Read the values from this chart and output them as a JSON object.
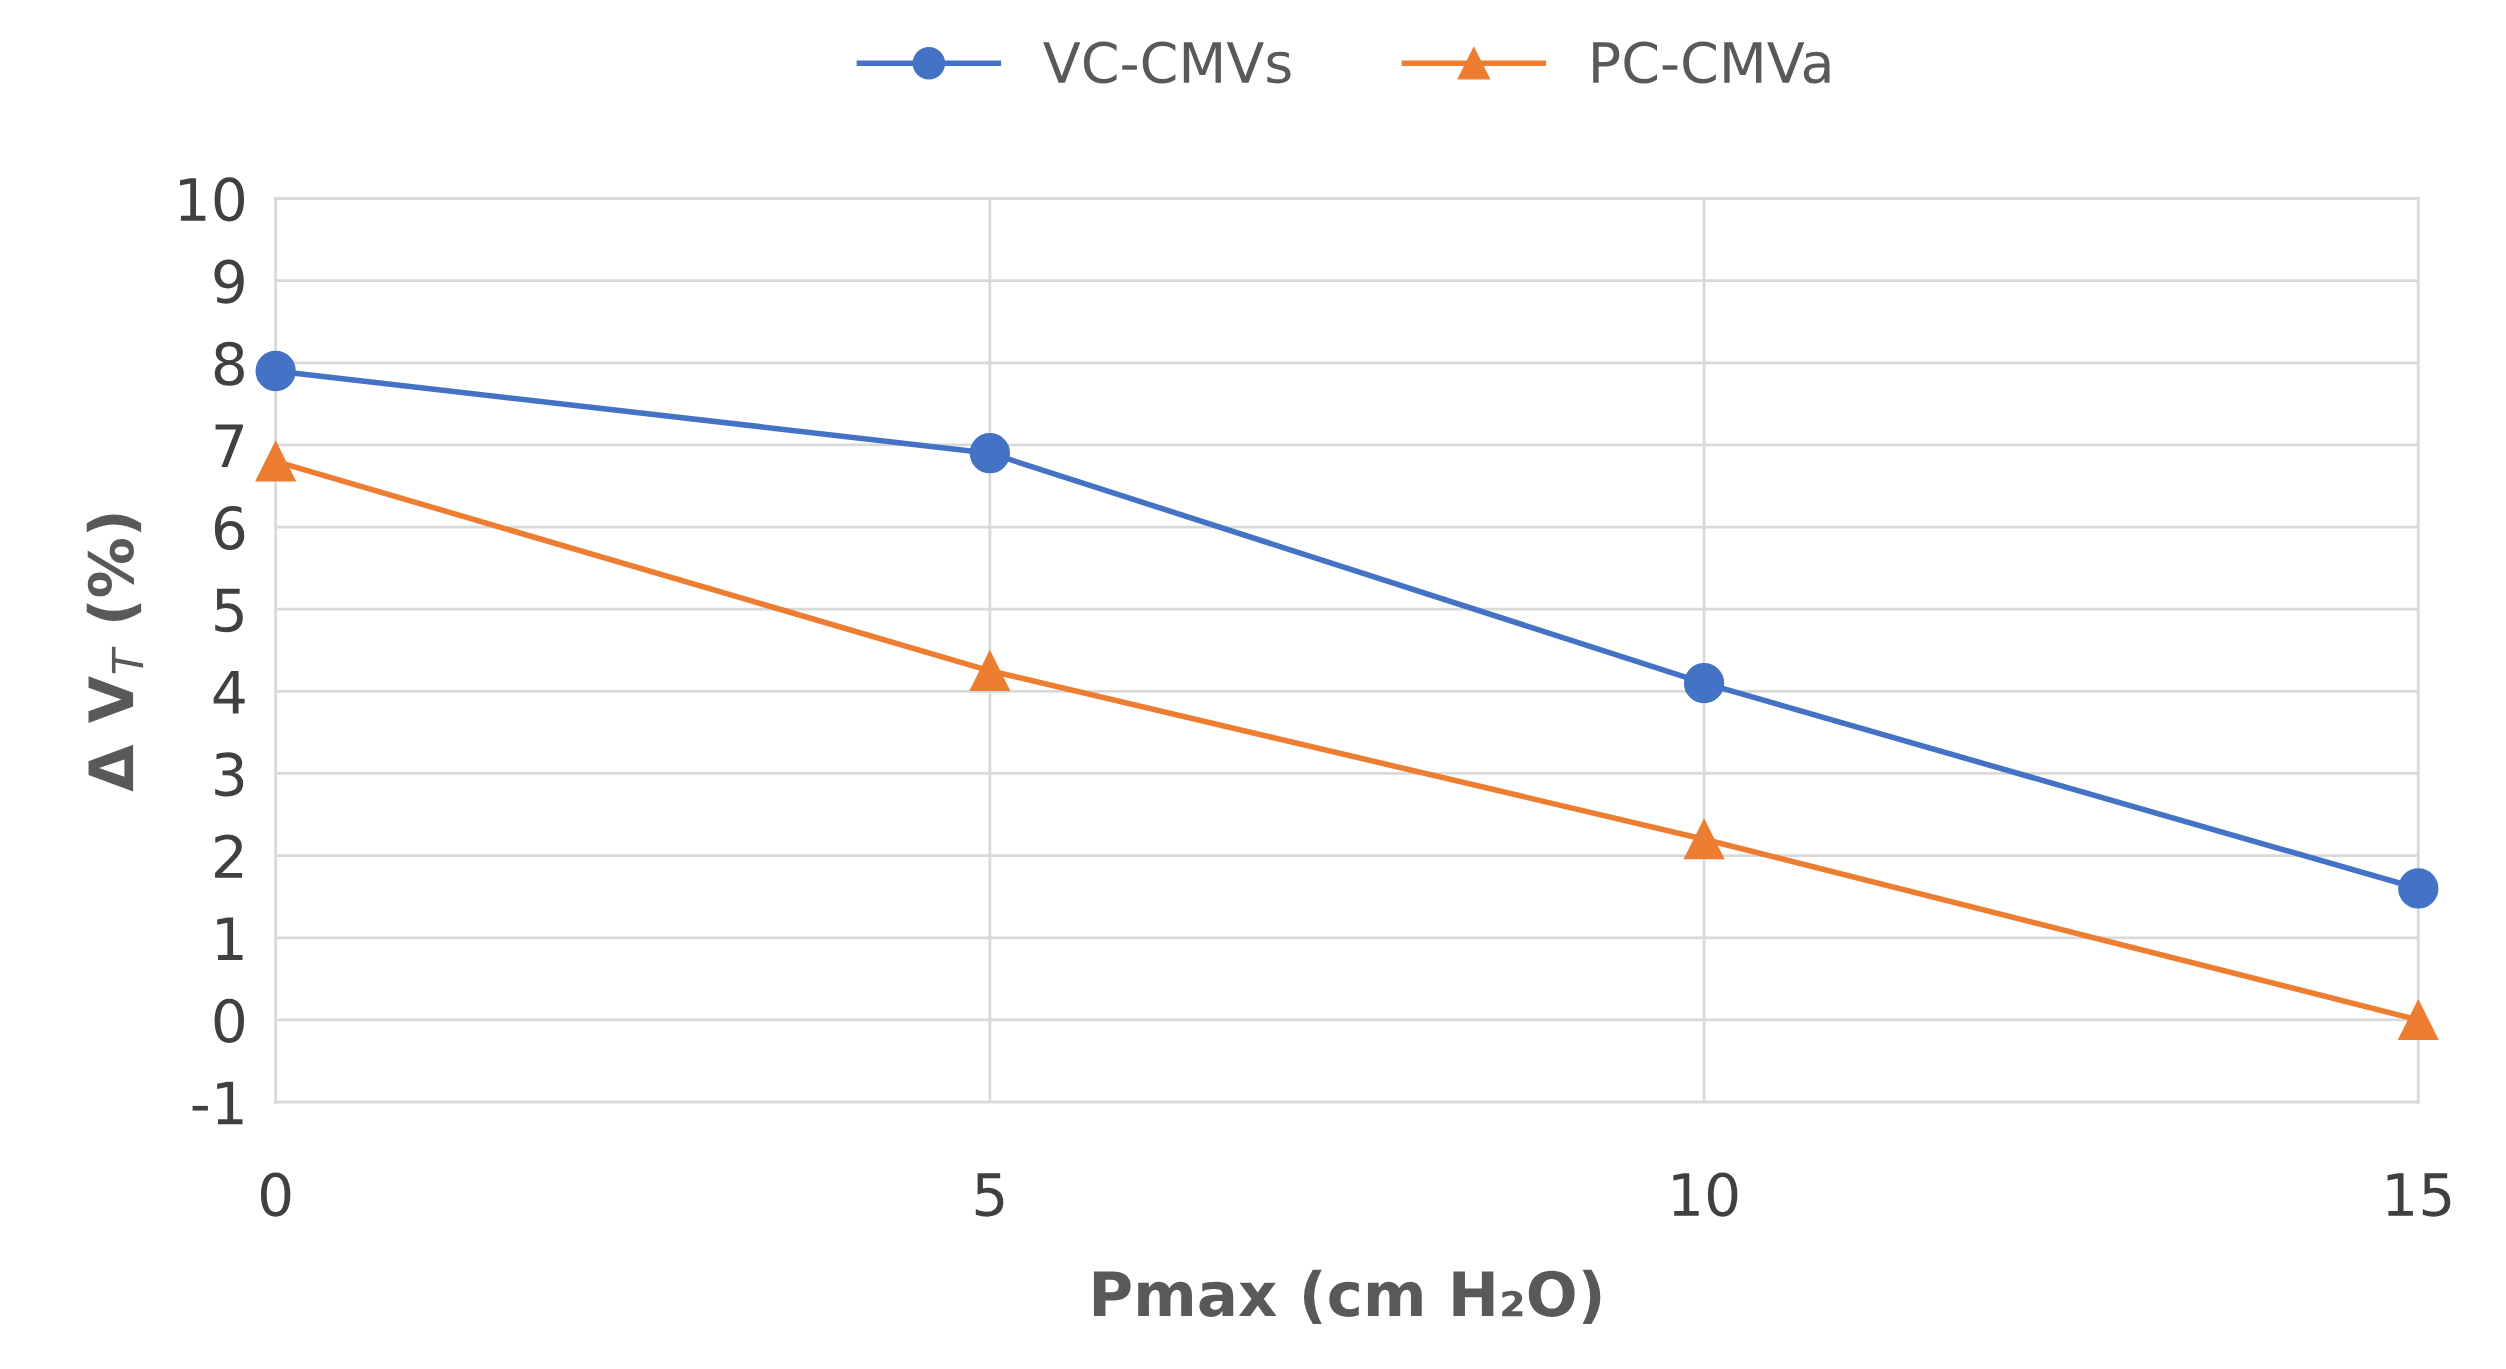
{
  "chart_data": {
    "type": "line",
    "xlabel": "Pmax (cm H₂O)",
    "ylabel": "Δ V$_{T}$ (%)",
    "x": [
      0,
      5,
      10,
      15
    ],
    "series": [
      {
        "name": "VC-CMVs",
        "color": "#4472c4",
        "values": [
          7.9,
          6.9,
          4.1,
          1.6
        ],
        "marker": "circle"
      },
      {
        "name": "PC-CMVa",
        "color": "#ed7d31",
        "values": [
          6.8,
          4.25,
          2.2,
          0.0
        ],
        "marker": "triangle"
      }
    ],
    "xlim": [
      0,
      15
    ],
    "xticks": [
      0,
      5,
      10,
      15
    ],
    "ylim": [
      -1,
      10
    ],
    "yticks": [
      -1,
      0,
      1,
      2,
      3,
      4,
      5,
      6,
      7,
      8,
      9,
      10
    ],
    "grid": true,
    "legend": "top",
    "line_style": "solid"
  }
}
